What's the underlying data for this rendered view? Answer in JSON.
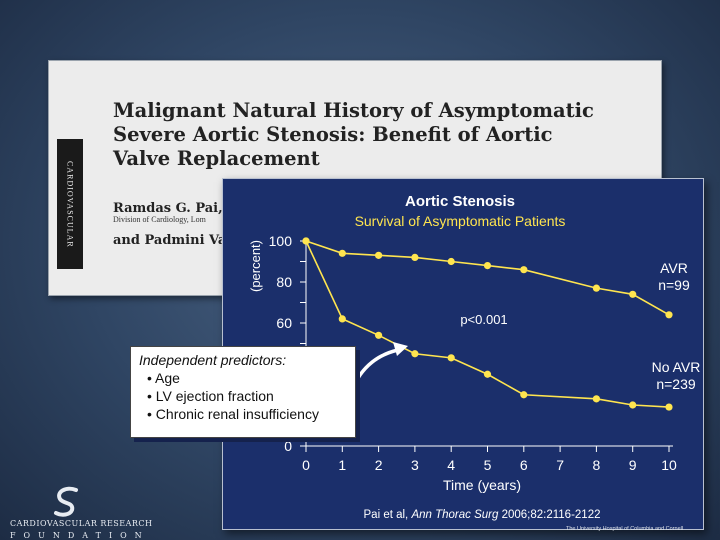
{
  "paper": {
    "journal_label": "CARDIOVASCULAR",
    "title_lines": [
      "Malignant Natural History of Asymptomatic",
      "Severe Aortic Stenosis: Benefit of Aortic",
      "Valve Replacement"
    ],
    "authors_lines": [
      "Ramdas G. Pai, MI",
      "and Padmini Vara"
    ],
    "affiliation": "Division of Cardiology, Lom"
  },
  "chart_data": {
    "type": "line",
    "title": "Aortic Stenosis",
    "subtitle": "Survival of Asymptomatic Patients",
    "xlabel": "Time (years)",
    "ylabel": "(percent)",
    "xlim": [
      0,
      10
    ],
    "ylim": [
      0,
      100
    ],
    "x_ticks": [
      0,
      1,
      2,
      3,
      4,
      5,
      6,
      7,
      8,
      9,
      10
    ],
    "y_ticks": [
      0,
      60,
      80,
      100
    ],
    "grid": false,
    "series": [
      {
        "name": "AVR n=99",
        "label_lines": [
          "AVR",
          "n=99"
        ],
        "x": [
          0,
          1,
          2,
          3,
          4,
          5,
          6,
          8,
          9,
          10
        ],
        "y": [
          100,
          94,
          93,
          92,
          90,
          88,
          86,
          77,
          74,
          64
        ]
      },
      {
        "name": "No AVR n=239",
        "label_lines": [
          "No AVR",
          "n=239"
        ],
        "x": [
          0,
          1,
          2,
          3,
          4,
          5,
          6,
          8,
          9,
          10
        ],
        "y": [
          100,
          62,
          54,
          45,
          43,
          35,
          25,
          23,
          20,
          19
        ]
      }
    ],
    "annotations": {
      "p_value": "p<0.001",
      "citation_prefix": "Pai et al, ",
      "citation_journal": "Ann Thorac Surg",
      "citation_suffix": " 2006;82:2116-2122"
    },
    "colors": {
      "line": "#ffe54f",
      "panel": "#1b2f6b",
      "text": "#ffffff"
    }
  },
  "predictors": {
    "title": "Independent predictors:",
    "items": [
      "Age",
      "LV ejection fraction",
      "Chronic renal insufficiency"
    ]
  },
  "footer": {
    "org_name": "CARDIOVASCULAR RESEARCH",
    "org_suffix": "FOUNDATION",
    "hospital": "The University Hospital of Columbia and Cornell"
  }
}
